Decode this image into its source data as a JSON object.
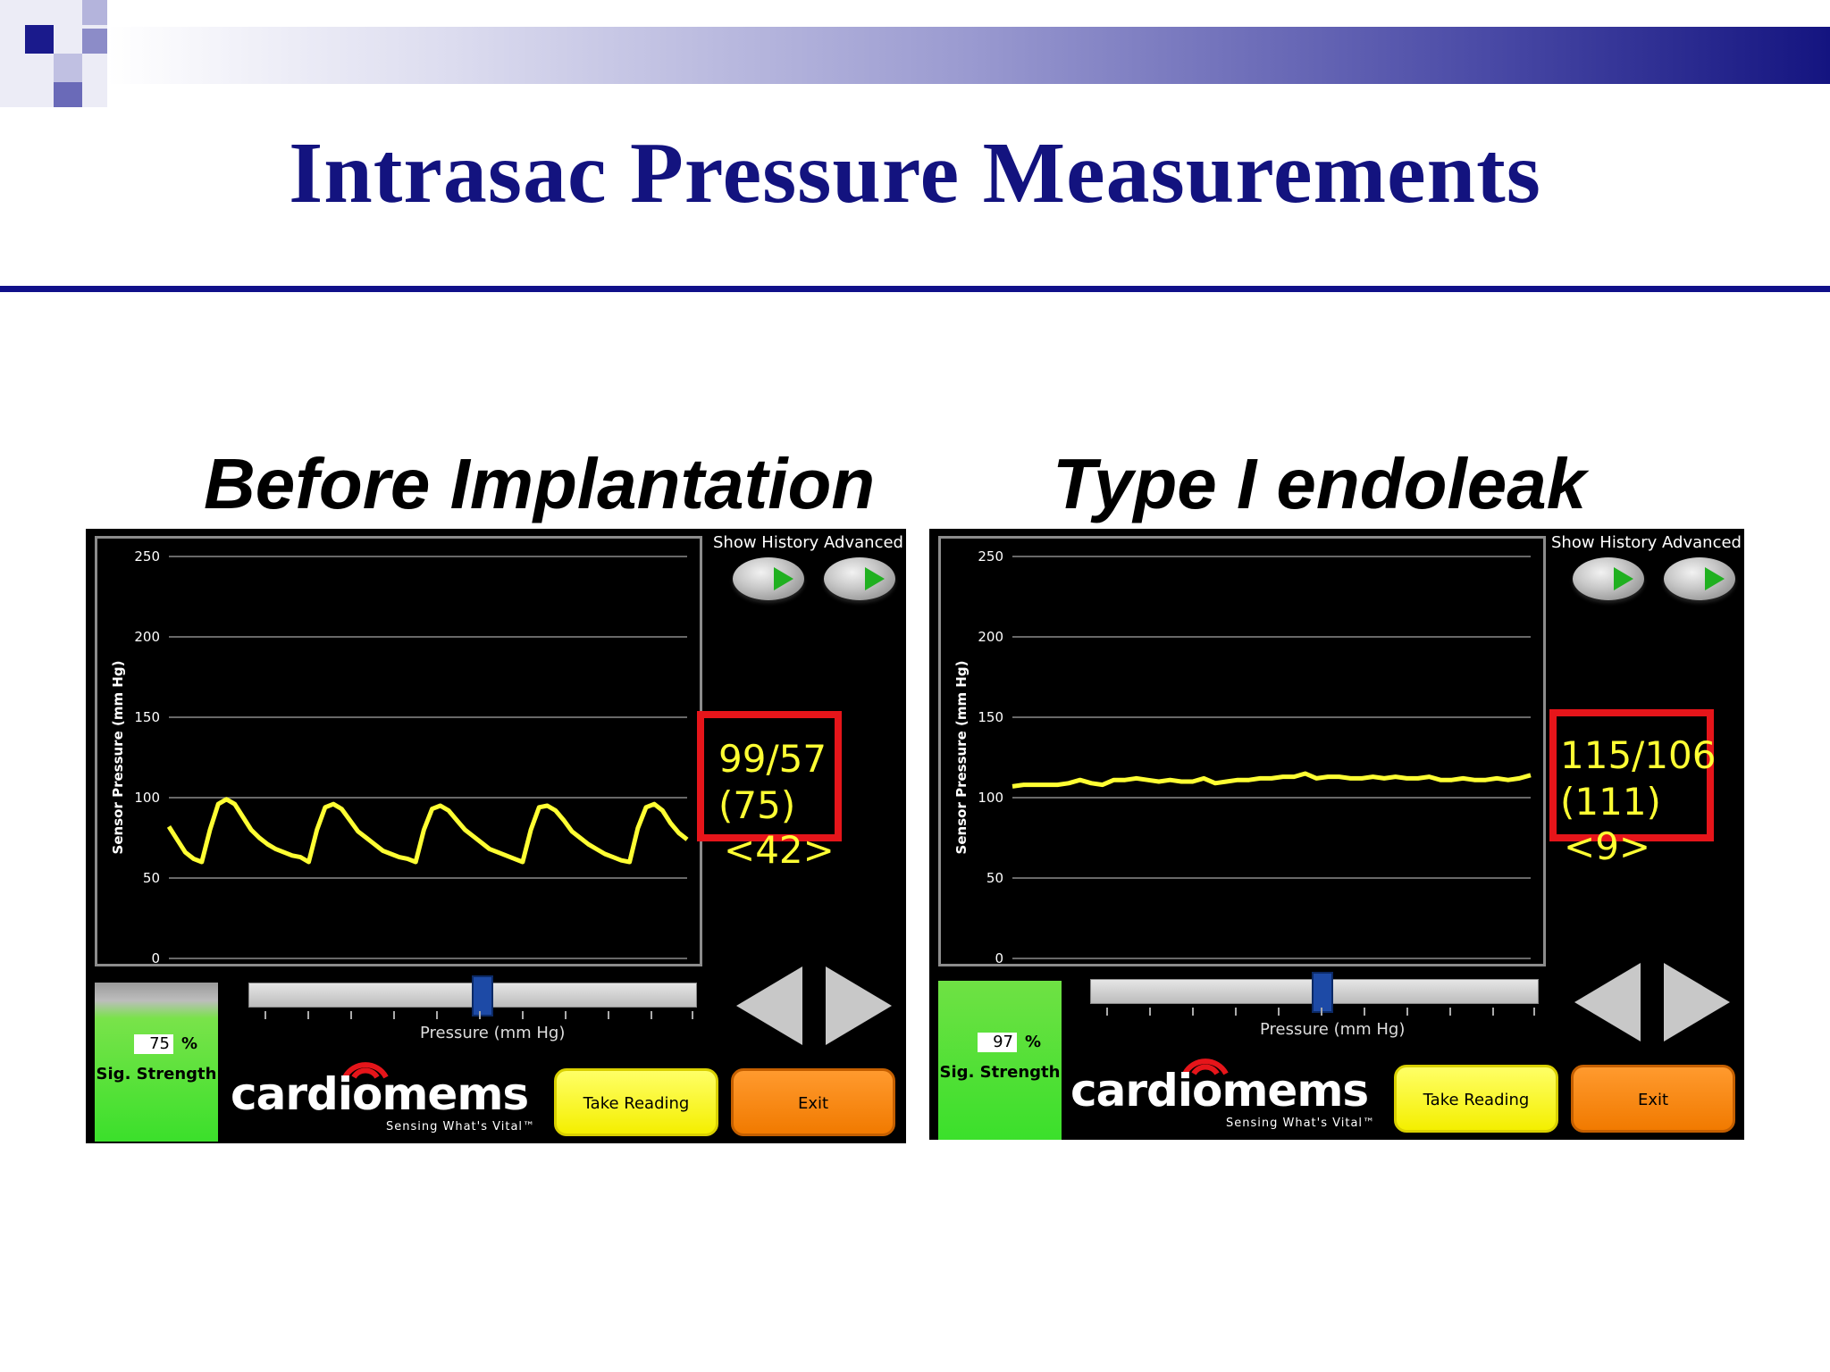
{
  "slide": {
    "title": "Intrasac Pressure Measurements",
    "theme_colors": {
      "title": "#13137f",
      "rule": "#10108a",
      "trace": "#ffff33",
      "highlight_box": "#e6151a"
    }
  },
  "panels": [
    {
      "heading": "Before Implantation",
      "menu": "Show History Advanced",
      "readout": {
        "sys_dia": "99/57",
        "mean": "(75)",
        "pulse": "<42>"
      },
      "signal": {
        "value": "75",
        "percent": "%",
        "label": "Sig. Strength"
      },
      "slider_label": "Pressure (mm Hg)",
      "logo": "cardiomems",
      "tagline": "Sensing What's Vital™",
      "buttons": {
        "take_reading": "Take Reading",
        "exit": "Exit"
      },
      "chart_data": {
        "type": "line",
        "ylabel": "Sensor Pressure (mm Hg)",
        "ylim": [
          0,
          250
        ],
        "yticks": [
          "0",
          "50",
          "100",
          "150",
          "200",
          "250"
        ],
        "grid": true,
        "series": [
          {
            "values": [
              82,
              74,
              66,
              62,
              60,
              80,
              96,
              99,
              96,
              88,
              80,
              75,
              71,
              68,
              66,
              64,
              63,
              60,
              80,
              94,
              96,
              93,
              86,
              79,
              75,
              71,
              67,
              65,
              63,
              62,
              60,
              80,
              93,
              95,
              92,
              86,
              80,
              76,
              72,
              68,
              66,
              64,
              62,
              60,
              80,
              94,
              95,
              92,
              86,
              79,
              75,
              71,
              68,
              65,
              63,
              61,
              60,
              81,
              94,
              96,
              92,
              84,
              78,
              74
            ]
          }
        ]
      }
    },
    {
      "heading": "Type I endoleak",
      "menu": "Show History Advanced",
      "readout": {
        "sys_dia": "115/106",
        "mean": "(111)",
        "pulse": "<9>"
      },
      "signal": {
        "value": "97",
        "percent": "%",
        "label": "Sig. Strength"
      },
      "slider_label": "Pressure (mm Hg)",
      "logo": "cardiomems",
      "tagline": "Sensing What's Vital™",
      "buttons": {
        "take_reading": "Take Reading",
        "exit": "Exit"
      },
      "chart_data": {
        "type": "line",
        "ylabel": "Sensor Pressure (mm Hg)",
        "ylim": [
          0,
          250
        ],
        "yticks": [
          "0",
          "50",
          "100",
          "150",
          "200",
          "250"
        ],
        "grid": true,
        "series": [
          {
            "values": [
              107,
              108,
              108,
              108,
              108,
              109,
              111,
              109,
              108,
              111,
              111,
              112,
              111,
              110,
              111,
              110,
              110,
              112,
              109,
              110,
              111,
              111,
              112,
              112,
              113,
              113,
              115,
              112,
              113,
              113,
              112,
              112,
              113,
              112,
              113,
              112,
              112,
              113,
              111,
              111,
              112,
              111,
              111,
              112,
              111,
              112,
              114
            ]
          }
        ]
      }
    }
  ]
}
